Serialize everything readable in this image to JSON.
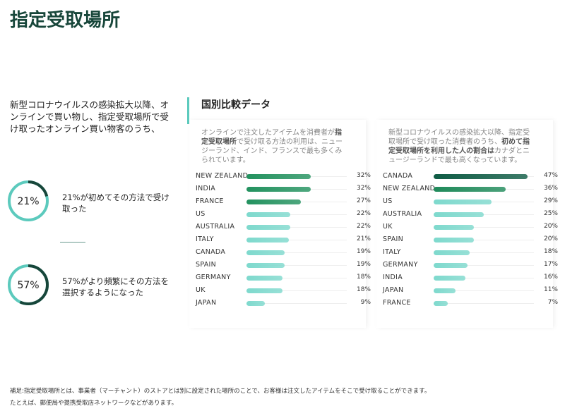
{
  "title": "指定受取場所",
  "intro": "新型コロナウイルスの感染拡大以降、オンラインで買い物し、指定受取場所で受け取ったオンライン買い物客のうち、",
  "section_title": "国別比較データ",
  "footnotes": [
    "補足:指定受取場所とは、事業者（マーチャント）のストアとは別に設定された場所のことで、お客様は注文したアイテムをそこで受け取ることができます。",
    "たとえば、郵便局や提携受取店ネットワークなどがあります。"
  ],
  "chart_data": [
    {
      "type": "donut",
      "values": [
        21
      ],
      "value_labels": [
        "21%"
      ],
      "caption": "21%が初めてその方法で受け取った",
      "color": "#17463a",
      "track_color": "#5ccabd"
    },
    {
      "type": "donut",
      "values": [
        57
      ],
      "value_labels": [
        "57%"
      ],
      "caption": "57%がより頻繁にその方法を選択するようになった",
      "color": "#17463a",
      "track_color": "#5ccabd"
    },
    {
      "type": "bar",
      "orientation": "horizontal",
      "subtitle_parts": [
        "オンラインで注文したアイテムを消費者が",
        "指定受取場所",
        "で受け取る方法の利用は、ニュージーランド、インド、フランスで最も多くみられています。"
      ],
      "categories": [
        "NEW ZEALAND",
        "INDIA",
        "FRANCE",
        "US",
        "AUSTRALIA",
        "ITALY",
        "CANADA",
        "SPAIN",
        "GERMANY",
        "UK",
        "JAPAN"
      ],
      "values": [
        32,
        32,
        27,
        22,
        22,
        21,
        19,
        19,
        18,
        18,
        9
      ],
      "value_labels": [
        "32%",
        "32%",
        "27%",
        "22%",
        "22%",
        "21%",
        "19%",
        "19%",
        "18%",
        "18%",
        "9%"
      ],
      "colors": [
        "#23925f",
        "#23925f",
        "#23925f",
        "#7ed9cd",
        "#7ed9cd",
        "#7ed9cd",
        "#7ed9cd",
        "#7ed9cd",
        "#7ed9cd",
        "#7ed9cd",
        "#7ed9cd"
      ],
      "xlim": [
        0,
        50
      ]
    },
    {
      "type": "bar",
      "orientation": "horizontal",
      "subtitle_parts": [
        "新型コロナウイルスの感染拡大以降、指定受取場所で受け取った消費者のうち、",
        "初めて指定受取場所を利用した人の割合は",
        "カナダとニュージーランドで最も高くなっています。"
      ],
      "categories": [
        "CANADA",
        "NEW ZEALAND",
        "US",
        "AUSTRALIA",
        "UK",
        "SPAIN",
        "ITALY",
        "GERMANY",
        "INDIA",
        "JAPAN",
        "FRANCE"
      ],
      "values": [
        47,
        36,
        29,
        25,
        20,
        20,
        18,
        17,
        16,
        11,
        7
      ],
      "value_labels": [
        "47%",
        "36%",
        "29%",
        "25%",
        "20%",
        "20%",
        "18%",
        "17%",
        "16%",
        "11%",
        "7%"
      ],
      "colors": [
        "#0f5c45",
        "#1f8a5a",
        "#7ed9cd",
        "#7ed9cd",
        "#7ed9cd",
        "#7ed9cd",
        "#7ed9cd",
        "#7ed9cd",
        "#7ed9cd",
        "#7ed9cd",
        "#7ed9cd"
      ],
      "xlim": [
        0,
        50
      ]
    }
  ]
}
